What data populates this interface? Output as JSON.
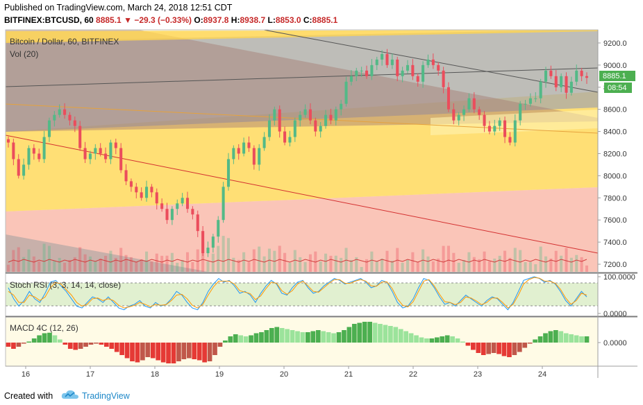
{
  "header": {
    "published": "Published on TradingView.com, March 24, 2018 12:51 CDT",
    "symbol": "BITFINEX:BTCUSD, 60",
    "last": "8885.1",
    "change": "−29.3 (−0.33%)",
    "open_label": "O:",
    "open": "8937.8",
    "high_label": "H:",
    "high": "8938.7",
    "low_label": "L:",
    "low": "8853.0",
    "close_label": "C:",
    "close": "8885.1"
  },
  "panes": {
    "main_title": "Bitcoin / Dollar, 60, BITFINEX",
    "vol_label": "Vol (20)",
    "stoch_label": "Stoch RSI (3, 3, 14, 14, close)",
    "macd_label": "MACD 4C (12, 26)"
  },
  "price_badge": "8885.1",
  "time_badge": "08:54",
  "footer": {
    "made_with": "Created with",
    "brand": "TradingView"
  },
  "colors": {
    "up": "#53b987",
    "down": "#eb4d5c",
    "macd_up_strong": "#4caf50",
    "macd_up_weak": "#9be39b",
    "macd_down_strong": "#e53935",
    "macd_down_weak": "#c0574a",
    "stoch_k": "#2196f3",
    "stoch_d": "#ff9800",
    "badge": "#4caf50"
  },
  "chart_data": [
    {
      "type": "candlestick",
      "title": "Bitcoin / Dollar, 60, BITFINEX",
      "x_ticks": [
        "16",
        "17",
        "18",
        "19",
        "20",
        "21",
        "22",
        "23",
        "24"
      ],
      "y_ticks": [
        "9200.0",
        "9000.0",
        "8800.0",
        "8600.0",
        "8400.0",
        "8200.0",
        "8000.0",
        "7800.0",
        "7600.0",
        "7400.0",
        "7200.0"
      ],
      "ylim": [
        7150,
        9300
      ],
      "close_series": [
        8300,
        8150,
        8000,
        8100,
        8250,
        8200,
        8150,
        8350,
        8500,
        8550,
        8600,
        8550,
        8500,
        8450,
        8250,
        8150,
        8200,
        8250,
        8200,
        8150,
        8300,
        8250,
        8050,
        7950,
        7900,
        7850,
        7800,
        7900,
        7850,
        7750,
        7700,
        7600,
        7700,
        7750,
        7800,
        7700,
        7650,
        7500,
        7300,
        7350,
        7450,
        7600,
        7900,
        8150,
        8250,
        8200,
        8300,
        8250,
        8100,
        8250,
        8350,
        8500,
        8600,
        8400,
        8300,
        8350,
        8500,
        8550,
        8600,
        8500,
        8400,
        8450,
        8550,
        8500,
        8600,
        8650,
        8850,
        8900,
        8950,
        8950,
        8900,
        9000,
        9050,
        9100,
        9000,
        9050,
        8900,
        8950,
        9000,
        8900,
        8850,
        9000,
        9050,
        9000,
        8950,
        8800,
        8600,
        8500,
        8550,
        8600,
        8700,
        8600,
        8550,
        8450,
        8400,
        8450,
        8500,
        8350,
        8300,
        8500,
        8650,
        8650,
        8700,
        8700,
        8850,
        8950,
        8900,
        8800,
        8900,
        8750,
        8850,
        8950,
        8900,
        8885
      ],
      "volume_label": "Vol (20)"
    },
    {
      "type": "line",
      "title": "Stoch RSI (3, 3, 14, 14, close)",
      "y_ticks": [
        "100.0000",
        "0.0000"
      ],
      "ylim": [
        0,
        100
      ],
      "series": [
        {
          "name": "K",
          "values": [
            70,
            40,
            20,
            35,
            60,
            40,
            30,
            55,
            85,
            90,
            75,
            60,
            40,
            20,
            15,
            30,
            45,
            40,
            30,
            45,
            30,
            15,
            10,
            20,
            25,
            35,
            20,
            15,
            30,
            20,
            25,
            40,
            60,
            50,
            30,
            15,
            10,
            30,
            60,
            80,
            95,
            85,
            90,
            75,
            55,
            60,
            50,
            30,
            55,
            75,
            90,
            80,
            55,
            50,
            70,
            85,
            90,
            70,
            55,
            60,
            75,
            85,
            95,
            90,
            80,
            85,
            90,
            95,
            85,
            70,
            75,
            90,
            85,
            60,
            30,
            15,
            20,
            40,
            70,
            95,
            90,
            70,
            45,
            25,
            30,
            20,
            35,
            50,
            40,
            30,
            20,
            35,
            45,
            40,
            25,
            10,
            30,
            60,
            90,
            95,
            100,
            95,
            85,
            90,
            80,
            60,
            35,
            20,
            40,
            60,
            45
          ]
        },
        {
          "name": "D",
          "values": [
            60,
            50,
            30,
            30,
            50,
            45,
            35,
            45,
            70,
            85,
            80,
            65,
            50,
            30,
            20,
            25,
            40,
            42,
            35,
            40,
            35,
            22,
            15,
            18,
            22,
            30,
            25,
            18,
            25,
            22,
            24,
            35,
            50,
            52,
            40,
            22,
            15,
            25,
            50,
            72,
            88,
            88,
            88,
            80,
            62,
            58,
            54,
            38,
            48,
            68,
            85,
            82,
            62,
            52,
            62,
            80,
            88,
            75,
            60,
            58,
            70,
            82,
            92,
            92,
            82,
            82,
            88,
            92,
            88,
            75,
            74,
            85,
            86,
            68,
            40,
            22,
            18,
            32,
            60,
            88,
            92,
            75,
            52,
            32,
            30,
            24,
            30,
            45,
            42,
            34,
            24,
            30,
            42,
            42,
            30,
            15,
            25,
            50,
            80,
            92,
            98,
            96,
            88,
            88,
            82,
            66,
            42,
            25,
            35,
            55,
            50
          ]
        }
      ]
    },
    {
      "type": "bar",
      "title": "MACD 4C (12, 26)",
      "y_ticks": [
        "0.0000"
      ],
      "values": [
        -40,
        -60,
        -40,
        -10,
        10,
        40,
        70,
        90,
        95,
        70,
        30,
        -20,
        -60,
        -70,
        -60,
        -40,
        -20,
        -10,
        -20,
        -40,
        -60,
        -90,
        -120,
        -150,
        -180,
        -190,
        -170,
        -140,
        -150,
        -170,
        -190,
        -200,
        -200,
        -180,
        -160,
        -150,
        -160,
        -170,
        -190,
        -180,
        -120,
        -40,
        20,
        60,
        80,
        70,
        60,
        70,
        90,
        100,
        120,
        140,
        150,
        140,
        130,
        120,
        110,
        100,
        100,
        110,
        120,
        110,
        100,
        90,
        100,
        120,
        150,
        180,
        190,
        200,
        200,
        190,
        180,
        170,
        160,
        150,
        130,
        110,
        90,
        70,
        50,
        40,
        40,
        50,
        60,
        70,
        60,
        40,
        10,
        -30,
        -70,
        -100,
        -120,
        -110,
        -100,
        -110,
        -130,
        -140,
        -120,
        -90,
        -50,
        -10,
        30,
        60,
        90,
        110,
        120,
        110,
        90,
        80,
        70,
        60,
        60
      ]
    }
  ]
}
